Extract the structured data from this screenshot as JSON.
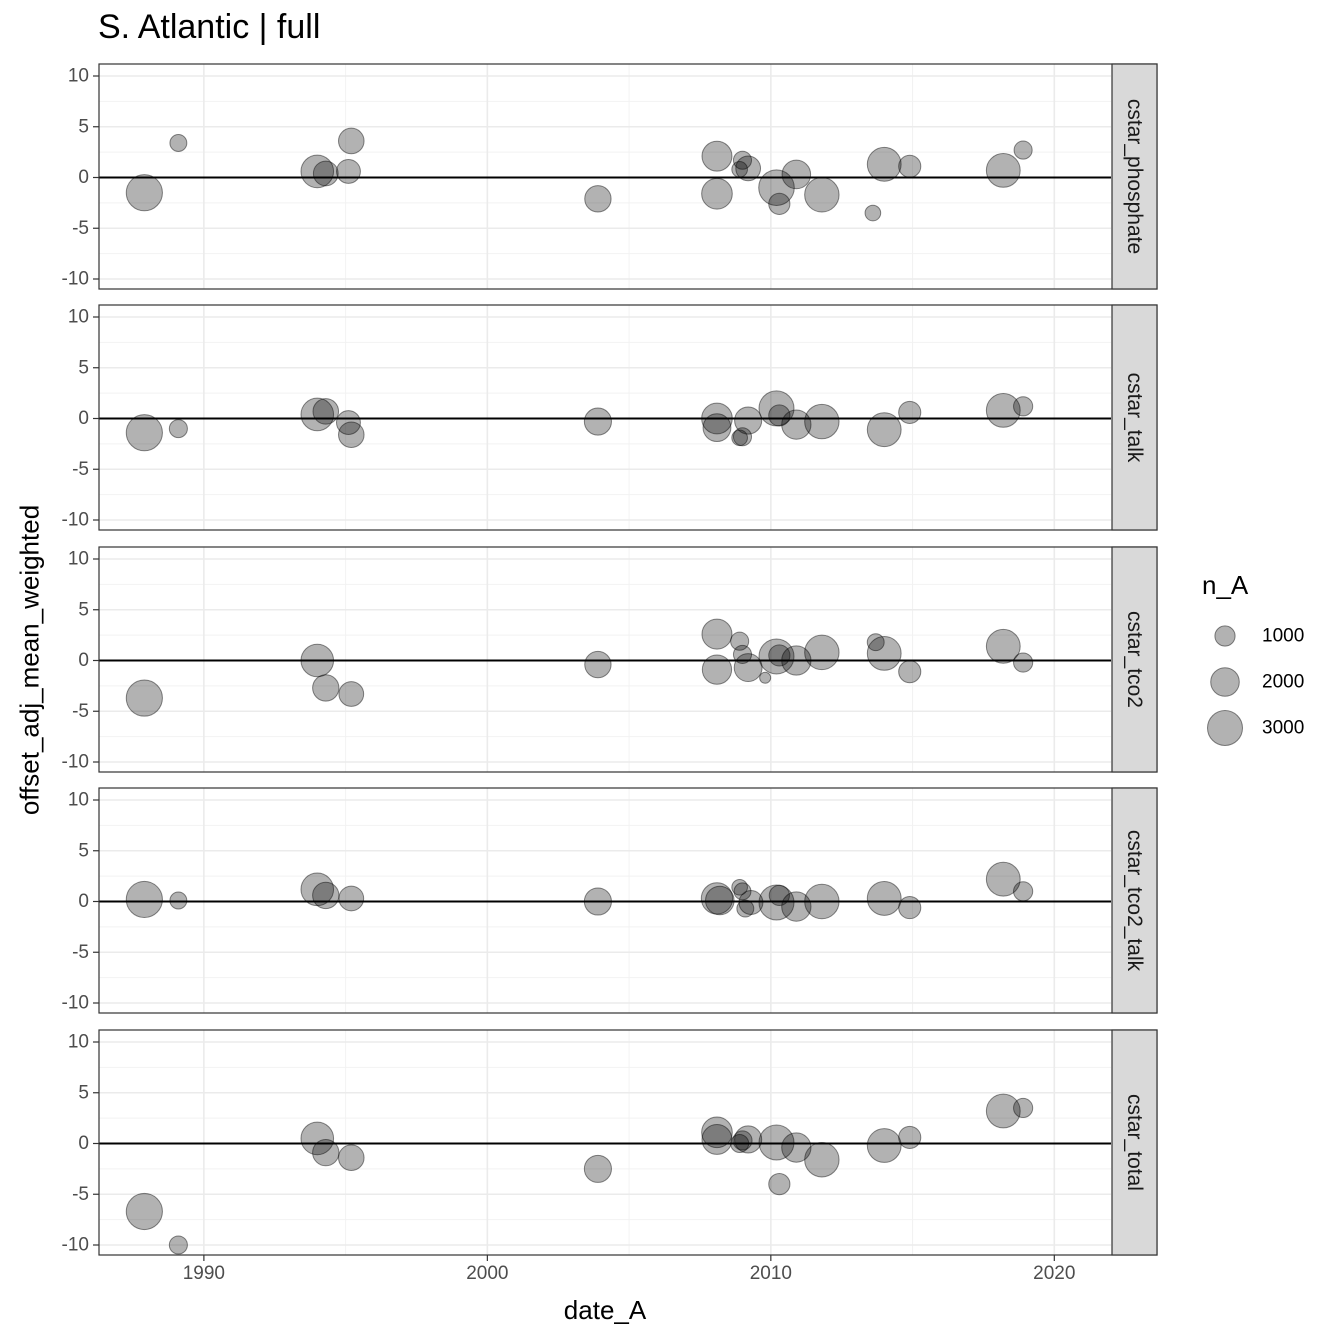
{
  "title": "S. Atlantic | full",
  "chart_data": {
    "type": "scatter",
    "title": "S. Atlantic | full",
    "xlabel": "date_A",
    "ylabel": "offset_adj_mean_weighted",
    "xlim": [
      1986.3,
      2022.0
    ],
    "ylim": [
      -11,
      11
    ],
    "x_ticks": [
      1990,
      2000,
      2010,
      2020
    ],
    "x_tick_labels": [
      "1990",
      "2000",
      "2010",
      "2020"
    ],
    "y_ticks": [
      10,
      5,
      0,
      -5,
      -10
    ],
    "y_tick_labels": [
      "10",
      "5",
      "0",
      "-5",
      "-10"
    ],
    "reference_line_y": 0,
    "grid": true,
    "point_color": "#000000",
    "point_opacity": 0.3,
    "size_legend": {
      "title": "n_A",
      "position": "right",
      "values": [
        1000,
        2000,
        3000
      ],
      "labels": [
        "1000",
        "2000",
        "3000"
      ]
    },
    "facets": [
      {
        "name": "cstar_phosphate",
        "points": [
          {
            "x": 1987.9,
            "y": -1.5,
            "n": 3200
          },
          {
            "x": 1989.1,
            "y": 3.4,
            "n": 700
          },
          {
            "x": 1994.0,
            "y": 0.6,
            "n": 2600
          },
          {
            "x": 1994.3,
            "y": 0.4,
            "n": 1500
          },
          {
            "x": 1995.1,
            "y": 0.6,
            "n": 1400
          },
          {
            "x": 1995.2,
            "y": 3.6,
            "n": 1600
          },
          {
            "x": 2003.9,
            "y": -2.1,
            "n": 1700
          },
          {
            "x": 2008.1,
            "y": 2.1,
            "n": 2200
          },
          {
            "x": 2008.1,
            "y": -1.6,
            "n": 2300
          },
          {
            "x": 2008.9,
            "y": 0.8,
            "n": 600
          },
          {
            "x": 2009.0,
            "y": 1.7,
            "n": 800
          },
          {
            "x": 2009.2,
            "y": 0.9,
            "n": 1500
          },
          {
            "x": 2010.2,
            "y": -1.0,
            "n": 3100
          },
          {
            "x": 2010.3,
            "y": -2.6,
            "n": 1100
          },
          {
            "x": 2010.9,
            "y": 0.3,
            "n": 2000
          },
          {
            "x": 2011.8,
            "y": -1.7,
            "n": 2900
          },
          {
            "x": 2013.6,
            "y": -3.5,
            "n": 600
          },
          {
            "x": 2014.0,
            "y": 1.3,
            "n": 2800
          },
          {
            "x": 2014.9,
            "y": 1.1,
            "n": 1200
          },
          {
            "x": 2018.2,
            "y": 0.7,
            "n": 2800
          },
          {
            "x": 2018.9,
            "y": 2.7,
            "n": 800
          }
        ]
      },
      {
        "name": "cstar_talk",
        "points": [
          {
            "x": 1987.9,
            "y": -1.4,
            "n": 3200
          },
          {
            "x": 1989.1,
            "y": -1.0,
            "n": 800
          },
          {
            "x": 1994.0,
            "y": 0.4,
            "n": 2600
          },
          {
            "x": 1994.3,
            "y": 0.7,
            "n": 1600
          },
          {
            "x": 1995.1,
            "y": -0.4,
            "n": 1400
          },
          {
            "x": 1995.2,
            "y": -1.6,
            "n": 1600
          },
          {
            "x": 2003.9,
            "y": -0.3,
            "n": 1800
          },
          {
            "x": 2008.1,
            "y": 0.0,
            "n": 2300
          },
          {
            "x": 2008.1,
            "y": -0.9,
            "n": 1900
          },
          {
            "x": 2008.9,
            "y": -1.9,
            "n": 600
          },
          {
            "x": 2009.0,
            "y": -1.8,
            "n": 800
          },
          {
            "x": 2009.2,
            "y": -0.2,
            "n": 1800
          },
          {
            "x": 2010.2,
            "y": 1.0,
            "n": 3000
          },
          {
            "x": 2010.3,
            "y": 0.3,
            "n": 1100
          },
          {
            "x": 2010.9,
            "y": -0.6,
            "n": 2100
          },
          {
            "x": 2011.8,
            "y": -0.3,
            "n": 2900
          },
          {
            "x": 2014.0,
            "y": -1.1,
            "n": 2800
          },
          {
            "x": 2014.9,
            "y": 0.6,
            "n": 1200
          },
          {
            "x": 2018.2,
            "y": 0.8,
            "n": 2800
          },
          {
            "x": 2018.9,
            "y": 1.2,
            "n": 900
          }
        ]
      },
      {
        "name": "cstar_tco2",
        "points": [
          {
            "x": 1987.9,
            "y": -3.7,
            "n": 3200
          },
          {
            "x": 1994.0,
            "y": 0.0,
            "n": 2600
          },
          {
            "x": 1994.3,
            "y": -2.7,
            "n": 1700
          },
          {
            "x": 1995.2,
            "y": -3.3,
            "n": 1500
          },
          {
            "x": 2003.9,
            "y": -0.4,
            "n": 1700
          },
          {
            "x": 2008.1,
            "y": 2.6,
            "n": 2200
          },
          {
            "x": 2008.1,
            "y": -0.9,
            "n": 2100
          },
          {
            "x": 2008.9,
            "y": 1.9,
            "n": 800
          },
          {
            "x": 2009.0,
            "y": 0.6,
            "n": 800
          },
          {
            "x": 2009.2,
            "y": -0.7,
            "n": 1900
          },
          {
            "x": 2009.8,
            "y": -1.7,
            "n": 300
          },
          {
            "x": 2010.2,
            "y": 0.4,
            "n": 3000
          },
          {
            "x": 2010.3,
            "y": 0.5,
            "n": 1100
          },
          {
            "x": 2010.9,
            "y": 0.0,
            "n": 2100
          },
          {
            "x": 2011.8,
            "y": 0.8,
            "n": 2900
          },
          {
            "x": 2013.7,
            "y": 1.8,
            "n": 700
          },
          {
            "x": 2014.0,
            "y": 0.7,
            "n": 2800
          },
          {
            "x": 2014.9,
            "y": -1.1,
            "n": 1200
          },
          {
            "x": 2018.2,
            "y": 1.4,
            "n": 2800
          },
          {
            "x": 2018.9,
            "y": -0.2,
            "n": 900
          }
        ]
      },
      {
        "name": "cstar_tco2_talk",
        "points": [
          {
            "x": 1987.9,
            "y": 0.2,
            "n": 3200
          },
          {
            "x": 1989.1,
            "y": 0.1,
            "n": 700
          },
          {
            "x": 1994.0,
            "y": 1.2,
            "n": 2600
          },
          {
            "x": 1994.3,
            "y": 0.6,
            "n": 1700
          },
          {
            "x": 1995.2,
            "y": 0.3,
            "n": 1500
          },
          {
            "x": 2003.9,
            "y": 0.0,
            "n": 1800
          },
          {
            "x": 2008.1,
            "y": 0.3,
            "n": 2400
          },
          {
            "x": 2008.2,
            "y": 0.1,
            "n": 2000
          },
          {
            "x": 2008.9,
            "y": 1.4,
            "n": 600
          },
          {
            "x": 2009.0,
            "y": 1.0,
            "n": 700
          },
          {
            "x": 2009.1,
            "y": -0.7,
            "n": 700
          },
          {
            "x": 2009.3,
            "y": -0.1,
            "n": 1400
          },
          {
            "x": 2010.2,
            "y": -0.1,
            "n": 3000
          },
          {
            "x": 2010.3,
            "y": 0.6,
            "n": 1000
          },
          {
            "x": 2010.9,
            "y": -0.5,
            "n": 2100
          },
          {
            "x": 2011.8,
            "y": 0.0,
            "n": 2900
          },
          {
            "x": 2014.0,
            "y": 0.3,
            "n": 2800
          },
          {
            "x": 2014.9,
            "y": -0.6,
            "n": 1200
          },
          {
            "x": 2018.2,
            "y": 2.2,
            "n": 2800
          },
          {
            "x": 2018.9,
            "y": 1.0,
            "n": 900
          }
        ]
      },
      {
        "name": "cstar_total",
        "points": [
          {
            "x": 1987.9,
            "y": -6.7,
            "n": 3200
          },
          {
            "x": 1989.1,
            "y": -10.0,
            "n": 800
          },
          {
            "x": 1994.0,
            "y": 0.5,
            "n": 2600
          },
          {
            "x": 1994.3,
            "y": -0.9,
            "n": 1700
          },
          {
            "x": 1995.2,
            "y": -1.4,
            "n": 1600
          },
          {
            "x": 2003.9,
            "y": -2.5,
            "n": 1800
          },
          {
            "x": 2008.1,
            "y": 1.1,
            "n": 2300
          },
          {
            "x": 2008.1,
            "y": 0.4,
            "n": 2200
          },
          {
            "x": 2008.9,
            "y": 0.0,
            "n": 800
          },
          {
            "x": 2009.0,
            "y": 0.3,
            "n": 900
          },
          {
            "x": 2009.2,
            "y": 0.4,
            "n": 1800
          },
          {
            "x": 2010.2,
            "y": 0.1,
            "n": 3000
          },
          {
            "x": 2010.3,
            "y": -4.0,
            "n": 1100
          },
          {
            "x": 2010.9,
            "y": -0.4,
            "n": 2100
          },
          {
            "x": 2011.8,
            "y": -1.6,
            "n": 2900
          },
          {
            "x": 2014.0,
            "y": -0.2,
            "n": 2800
          },
          {
            "x": 2014.9,
            "y": 0.6,
            "n": 1200
          },
          {
            "x": 2018.2,
            "y": 3.2,
            "n": 2800
          },
          {
            "x": 2018.9,
            "y": 3.5,
            "n": 900
          }
        ]
      }
    ]
  }
}
